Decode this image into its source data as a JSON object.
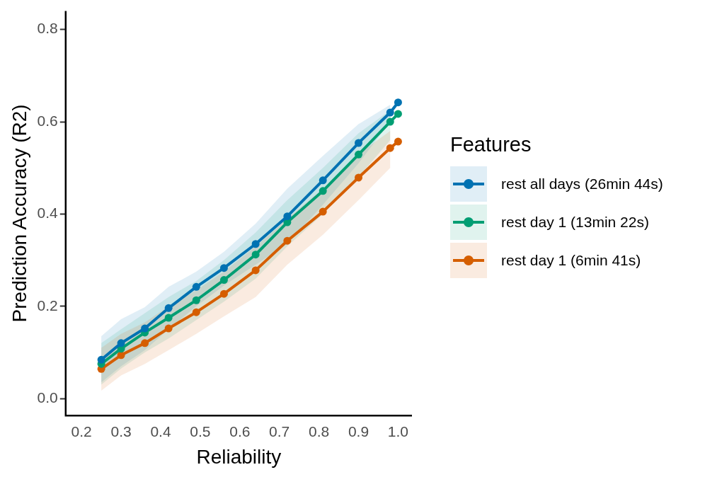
{
  "chart_data": {
    "type": "line",
    "xlabel": "Reliability",
    "ylabel": "Prediction Accuracy (R2)",
    "legend_title": "Features",
    "legend": "right",
    "marker": "circle",
    "line_style": "solid",
    "grid": false,
    "x": [
      0.25,
      0.3,
      0.36,
      0.42,
      0.49,
      0.56,
      0.64,
      0.72,
      0.81,
      0.9,
      0.98,
      1.0
    ],
    "xlim": [
      0.16,
      1.035
    ],
    "xticks": [
      0.2,
      0.3,
      0.4,
      0.5,
      0.6,
      0.7,
      0.8,
      0.9,
      {
        "value": 1,
        "label": "1.0"
      }
    ],
    "ylim": [
      -0.037,
      0.84
    ],
    "yticks": [
      {
        "value": 0,
        "label": "0.0"
      },
      0.2,
      0.4,
      0.6,
      0.8
    ],
    "series": [
      {
        "name": "rest all days (26min 44s)",
        "color": "#0072b2",
        "values": [
          0.084,
          0.12,
          0.152,
          0.196,
          0.242,
          0.283,
          0.335,
          0.395,
          0.473,
          0.554,
          0.62,
          0.642
        ],
        "lower": [
          0.035,
          0.07,
          0.105,
          0.15,
          0.2,
          0.245,
          0.29,
          0.335,
          0.42,
          0.51,
          0.6,
          null
        ],
        "upper": [
          0.135,
          0.172,
          0.198,
          0.242,
          0.275,
          0.318,
          0.379,
          0.455,
          0.526,
          0.595,
          0.637,
          null
        ]
      },
      {
        "name": "rest day 1 (13min 22s)",
        "color": "#009e73",
        "values": [
          0.075,
          0.108,
          0.143,
          0.175,
          0.213,
          0.257,
          0.312,
          0.382,
          0.45,
          0.529,
          0.6,
          0.617
        ],
        "lower": [
          0.03,
          0.065,
          0.1,
          0.13,
          0.17,
          0.21,
          0.26,
          0.33,
          0.4,
          0.48,
          0.56,
          null
        ],
        "upper": [
          0.12,
          0.15,
          0.185,
          0.22,
          0.255,
          0.3,
          0.36,
          0.43,
          0.5,
          0.575,
          0.625,
          null
        ]
      },
      {
        "name": "rest day 1 (6min 41s)",
        "color": "#d55e00",
        "values": [
          0.064,
          0.094,
          0.12,
          0.152,
          0.187,
          0.227,
          0.278,
          0.342,
          0.405,
          0.479,
          0.543,
          0.557
        ],
        "lower": [
          0.017,
          0.05,
          0.075,
          0.105,
          0.14,
          0.178,
          0.22,
          0.29,
          0.355,
          0.43,
          0.5,
          null
        ],
        "upper": [
          0.11,
          0.14,
          0.165,
          0.2,
          0.235,
          0.275,
          0.33,
          0.39,
          0.455,
          0.53,
          0.58,
          null
        ]
      }
    ]
  }
}
